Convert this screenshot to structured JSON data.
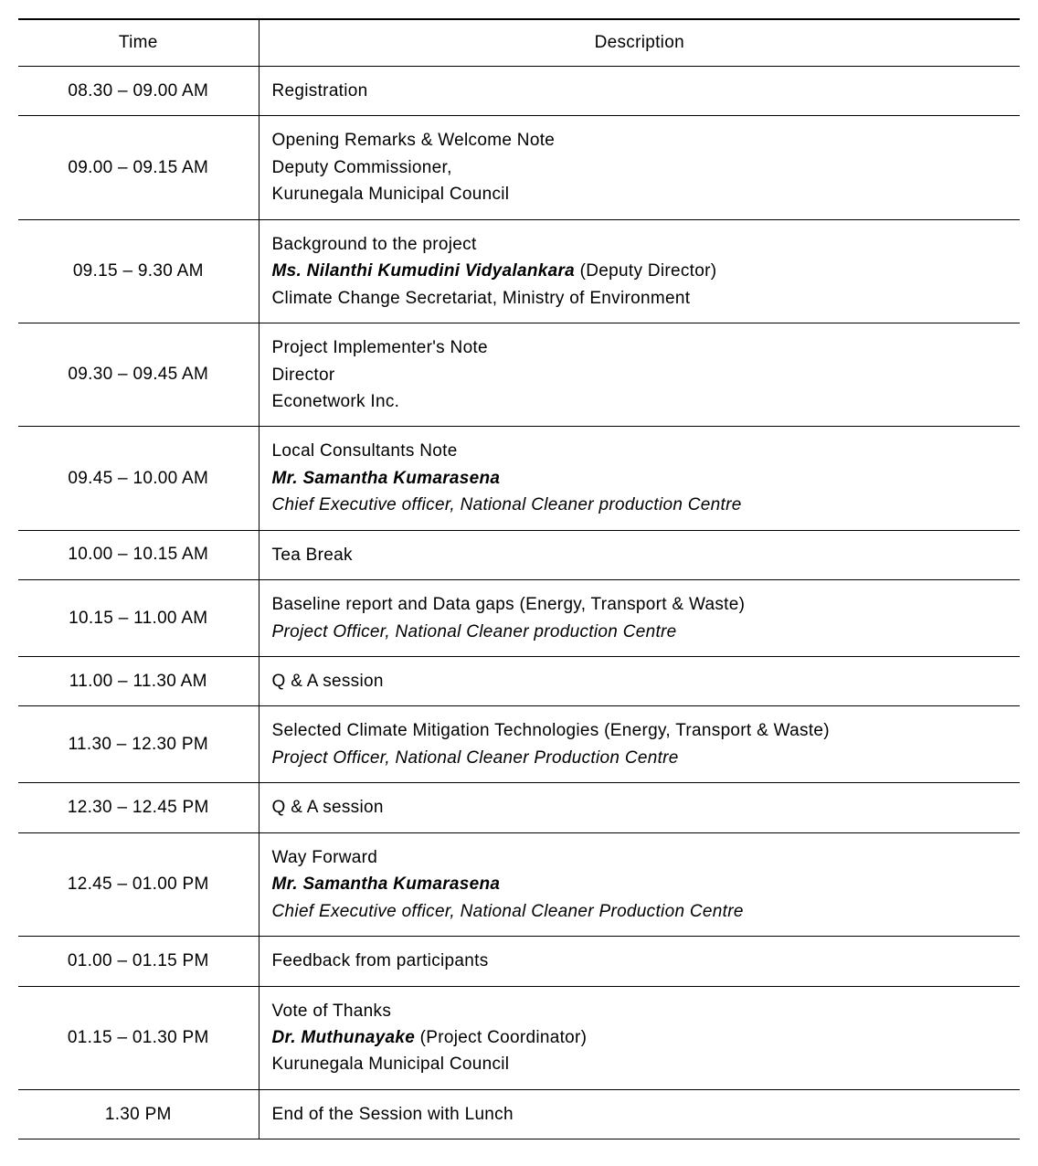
{
  "headers": {
    "time": "Time",
    "description": "Description"
  },
  "rows": [
    {
      "time": "08.30  –  09.00 AM",
      "lines": [
        {
          "text": "Registration"
        }
      ]
    },
    {
      "time": "09.00  –  09.15 AM",
      "lines": [
        {
          "text": "Opening Remarks & Welcome Note"
        },
        {
          "text": "Deputy Commissioner,"
        },
        {
          "text": "Kurunegala Municipal Council"
        }
      ]
    },
    {
      "time": "09.15  –  9.30 AM",
      "lines": [
        {
          "text": "Background to the project"
        },
        {
          "segments": [
            {
              "text": "Ms. Nilanthi Kumudini Vidyalankara",
              "style": "bolditalic"
            },
            {
              "text": " (Deputy Director)"
            }
          ]
        },
        {
          "text": "Climate Change Secretariat, Ministry of Environment"
        }
      ]
    },
    {
      "time": "09.30  –  09.45 AM",
      "lines": [
        {
          "text": "Project Implementer's Note"
        },
        {
          "text": "Director"
        },
        {
          "text": "Econetwork Inc."
        }
      ]
    },
    {
      "time": "09.45  –  10.00 AM",
      "lines": [
        {
          "text": "Local Consultants Note"
        },
        {
          "text": "Mr. Samantha Kumarasena",
          "style": "bolditalic"
        },
        {
          "text": "Chief Executive officer, National Cleaner production Centre",
          "style": "italic"
        }
      ]
    },
    {
      "time": "10.00  –  10.15 AM",
      "lines": [
        {
          "text": "Tea Break"
        }
      ]
    },
    {
      "time": "10.15  –  11.00 AM",
      "lines": [
        {
          "text": "Baseline report and Data gaps (Energy, Transport & Waste)"
        },
        {
          "text": "Project Officer, National Cleaner production Centre",
          "style": "italic"
        }
      ]
    },
    {
      "time": "11.00  –  11.30 AM",
      "lines": [
        {
          "text": "Q & A session"
        }
      ]
    },
    {
      "time": "11.30  –  12.30 PM",
      "lines": [
        {
          "text": "Selected Climate Mitigation Technologies (Energy, Transport & Waste)"
        },
        {
          "text": "Project Officer, National Cleaner Production   Centre",
          "style": "italic"
        }
      ]
    },
    {
      "time": "12.30  –  12.45 PM",
      "lines": [
        {
          "text": "Q & A session"
        }
      ]
    },
    {
      "time": "12.45  –  01.00 PM",
      "lines": [
        {
          "text": "Way Forward"
        },
        {
          "text": "Mr. Samantha Kumarasena",
          "style": "bolditalic"
        },
        {
          "text": "Chief Executive officer, National Cleaner Production Centre",
          "style": "italic"
        }
      ]
    },
    {
      "time": "01.00  –  01.15 PM",
      "lines": [
        {
          "text": "Feedback from participants"
        }
      ]
    },
    {
      "time": "01.15  –  01.30 PM",
      "lines": [
        {
          "text": "Vote of Thanks"
        },
        {
          "segments": [
            {
              "text": "Dr. Muthunayake",
              "style": "bolditalic"
            },
            {
              "text": " (Project Coordinator)"
            }
          ]
        },
        {
          "text": "Kurunegala Municipal Council"
        }
      ]
    },
    {
      "time": "1.30 PM",
      "lines": [
        {
          "text": "End of the Session with Lunch"
        }
      ]
    }
  ]
}
